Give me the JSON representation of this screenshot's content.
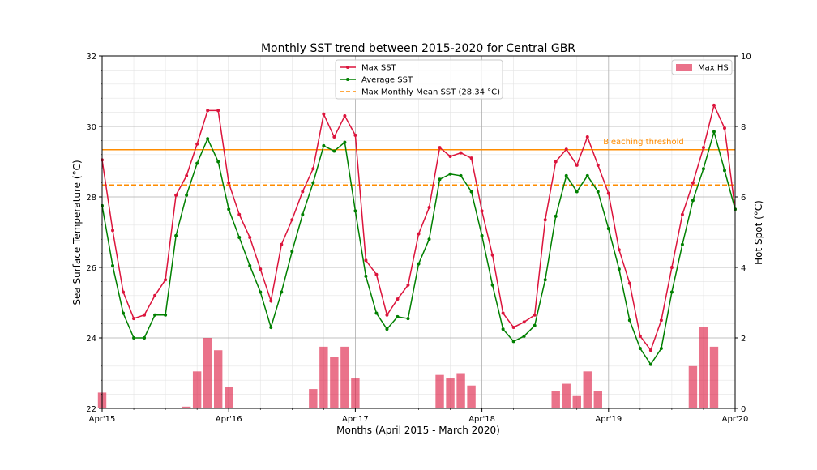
{
  "chart_data": {
    "type": "line",
    "title": "Monthly SST trend between 2015-2020 for Central GBR",
    "xlabel": "Months (April 2015 - March 2020)",
    "ylabel": "Sea Surface Temperature (°C)",
    "y2label": "Hot Spot (°C)",
    "ylim": [
      22,
      32
    ],
    "y2lim": [
      0,
      10
    ],
    "yticks": [
      22,
      24,
      26,
      28,
      30,
      32
    ],
    "y2ticks": [
      0,
      2,
      4,
      6,
      8,
      10
    ],
    "x_tick_labels": [
      "Apr'15",
      "Apr'16",
      "Apr'17",
      "Apr'18",
      "Apr'19",
      "Apr'20"
    ],
    "x_tick_months": [
      0,
      12,
      24,
      36,
      48,
      60
    ],
    "x_month_range": [
      0,
      60
    ],
    "grid": true,
    "months_index": [
      0,
      1,
      2,
      3,
      4,
      5,
      6,
      7,
      8,
      9,
      10,
      11,
      12,
      13,
      14,
      15,
      16,
      17,
      18,
      19,
      20,
      21,
      22,
      23,
      24,
      25,
      26,
      27,
      28,
      29,
      30,
      31,
      32,
      33,
      34,
      35,
      36,
      37,
      38,
      39,
      40,
      41,
      42,
      43,
      44,
      45,
      46,
      47,
      48,
      49,
      50,
      51,
      52,
      53,
      54,
      55,
      56,
      57,
      58,
      59,
      60
    ],
    "series": [
      {
        "name": "Max SST",
        "color": "#dc143c",
        "values": [
          29.05,
          27.05,
          25.3,
          24.55,
          24.65,
          25.2,
          25.65,
          28.05,
          28.6,
          29.5,
          30.45,
          30.45,
          28.4,
          27.5,
          26.85,
          25.95,
          25.05,
          26.65,
          27.35,
          28.15,
          28.8,
          30.35,
          29.7,
          30.3,
          29.75,
          26.2,
          25.8,
          24.65,
          25.1,
          25.5,
          26.95,
          27.7,
          29.4,
          29.15,
          29.25,
          29.1,
          27.6,
          26.35,
          24.7,
          24.3,
          24.45,
          24.65,
          27.35,
          29.0,
          29.35,
          28.9,
          29.7,
          28.9,
          28.1,
          26.5,
          25.55,
          24.05,
          23.65,
          24.5,
          26.0,
          27.5,
          28.4,
          29.4,
          30.6,
          29.95,
          27.65
        ]
      },
      {
        "name": "Average SST",
        "color": "#008000",
        "values": [
          27.75,
          26.05,
          24.7,
          24.0,
          24.0,
          24.65,
          24.65,
          26.9,
          28.05,
          28.95,
          29.65,
          29.0,
          27.65,
          26.85,
          26.05,
          25.3,
          24.3,
          25.3,
          26.45,
          27.5,
          28.4,
          29.45,
          29.3,
          29.55,
          27.6,
          25.75,
          24.7,
          24.25,
          24.6,
          24.55,
          26.1,
          26.8,
          28.5,
          28.65,
          28.6,
          28.15,
          26.9,
          25.5,
          24.25,
          23.9,
          24.05,
          24.35,
          25.65,
          27.45,
          28.6,
          28.15,
          28.6,
          28.15,
          27.1,
          25.95,
          24.5,
          23.7,
          23.25,
          23.7,
          25.3,
          26.65,
          27.9,
          28.8,
          29.85,
          28.75,
          27.65
        ]
      }
    ],
    "reference_lines": [
      {
        "name": "Max Monthly Mean SST (28.34 °C)",
        "value": 28.34,
        "color": "#ff8c00",
        "style": "dashed"
      },
      {
        "name": "Bleaching threshold",
        "value": 29.34,
        "color": "#ff8c00",
        "style": "solid"
      }
    ],
    "bars": {
      "name": "Max HS",
      "color": "#dc143c",
      "opacity": 0.6,
      "axis": "right",
      "values": [
        0.45,
        0,
        0,
        0,
        0,
        0,
        0,
        0,
        0.05,
        1.05,
        2.0,
        1.65,
        0.6,
        0,
        0,
        0,
        0,
        0,
        0,
        0,
        0.55,
        1.75,
        1.45,
        1.75,
        0.85,
        0,
        0,
        0,
        0,
        0,
        0,
        0,
        0.95,
        0.85,
        1.0,
        0.65,
        0,
        0,
        0,
        0,
        0,
        0,
        0,
        0.5,
        0.7,
        0.35,
        1.05,
        0.5,
        0,
        0,
        0,
        0,
        0,
        0,
        0,
        0,
        1.2,
        2.3,
        1.75,
        0,
        0
      ]
    },
    "legend_main": {
      "position": "upper-center",
      "items": [
        "Max SST",
        "Average SST",
        "Max Monthly Mean SST (28.34 °C)"
      ]
    },
    "legend_secondary": {
      "position": "top-right",
      "items": [
        "Max HS"
      ]
    },
    "annotations": [
      {
        "text": "Bleaching threshold",
        "color": "#ff8c00"
      }
    ]
  }
}
